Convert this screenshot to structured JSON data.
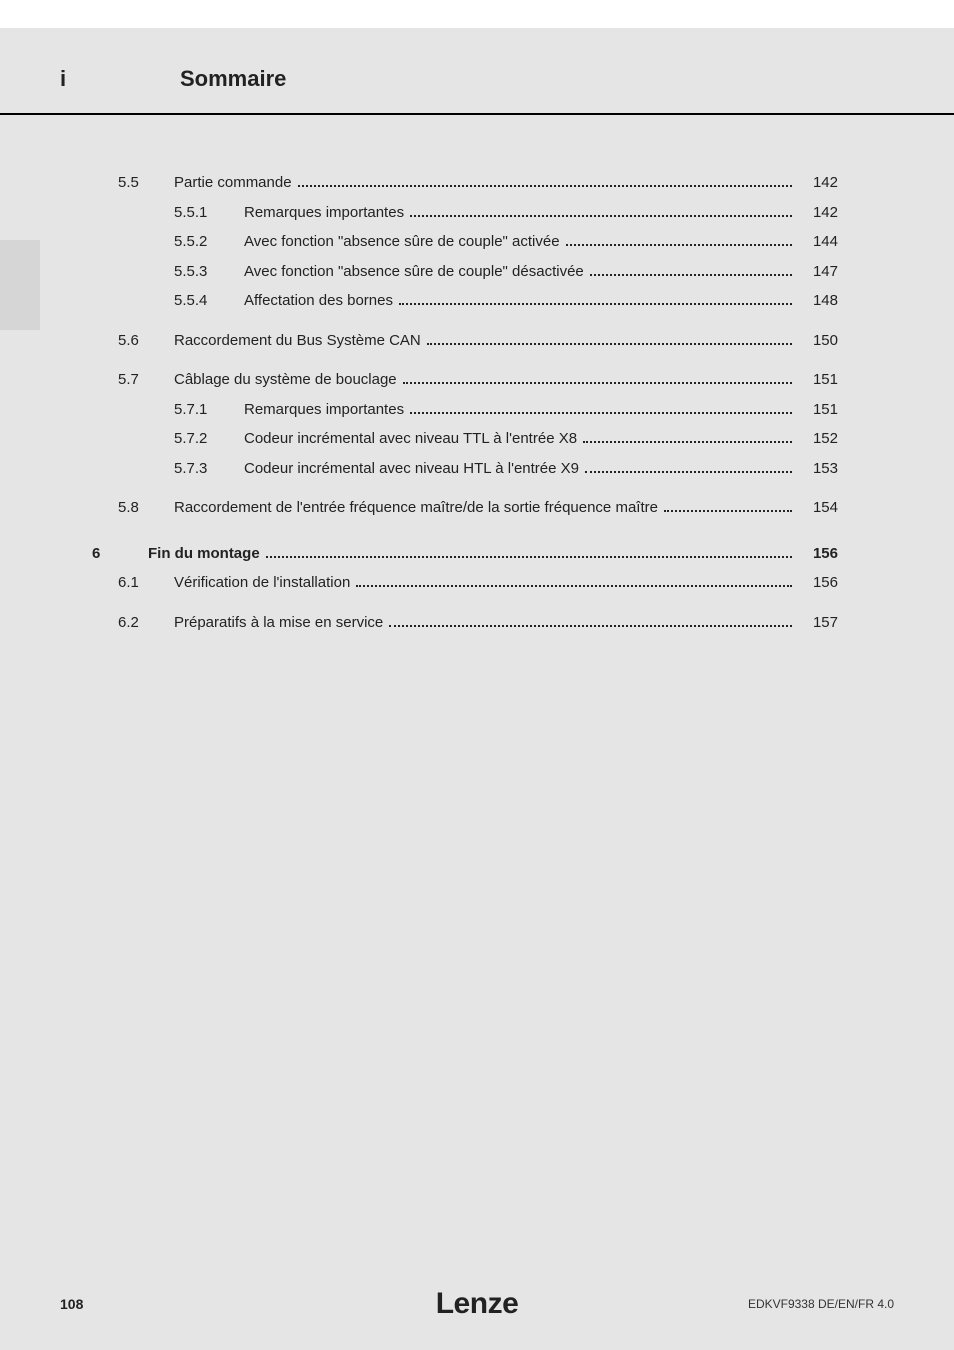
{
  "header": {
    "i": "i",
    "title": "Sommaire"
  },
  "toc": [
    {
      "type": "sec",
      "num": "5.5",
      "text": "Partie commande",
      "page": "142"
    },
    {
      "type": "sub",
      "num": "5.5.1",
      "text": "Remarques importantes",
      "page": "142"
    },
    {
      "type": "sub",
      "num": "5.5.2",
      "text": "Avec fonction \"absence sûre de couple\" activée",
      "page": "144"
    },
    {
      "type": "sub",
      "num": "5.5.3",
      "text": "Avec fonction \"absence sûre de couple\" désactivée",
      "page": "147"
    },
    {
      "type": "sub",
      "num": "5.5.4",
      "text": "Affectation des bornes",
      "page": "148"
    },
    {
      "type": "gap"
    },
    {
      "type": "sec",
      "num": "5.6",
      "text": "Raccordement du Bus Système CAN",
      "page": "150"
    },
    {
      "type": "gap"
    },
    {
      "type": "sec",
      "num": "5.7",
      "text": "Câblage du système de bouclage",
      "page": "151"
    },
    {
      "type": "sub",
      "num": "5.7.1",
      "text": "Remarques importantes",
      "page": "151"
    },
    {
      "type": "sub",
      "num": "5.7.2",
      "text": "Codeur incrémental avec niveau TTL à l'entrée X8",
      "page": "152"
    },
    {
      "type": "sub",
      "num": "5.7.3",
      "text": "Codeur incrémental avec niveau HTL à l'entrée X9",
      "page": "153"
    },
    {
      "type": "gap"
    },
    {
      "type": "sec",
      "num": "5.8",
      "text": "Raccordement de l'entrée fréquence maître/de la sortie fréquence maître",
      "page": "154"
    },
    {
      "type": "gap-lg"
    },
    {
      "type": "chap",
      "num": "6",
      "text": "Fin du montage",
      "page": "156"
    },
    {
      "type": "sec",
      "num": "6.1",
      "text": "Vérification de l'installation",
      "page": "156"
    },
    {
      "type": "gap"
    },
    {
      "type": "sec",
      "num": "6.2",
      "text": "Préparatifs à la mise en service",
      "page": "157"
    }
  ],
  "footer": {
    "pagenum": "108",
    "brand": "Lenze",
    "code": "EDKVF9338  DE/EN/FR  4.0"
  }
}
